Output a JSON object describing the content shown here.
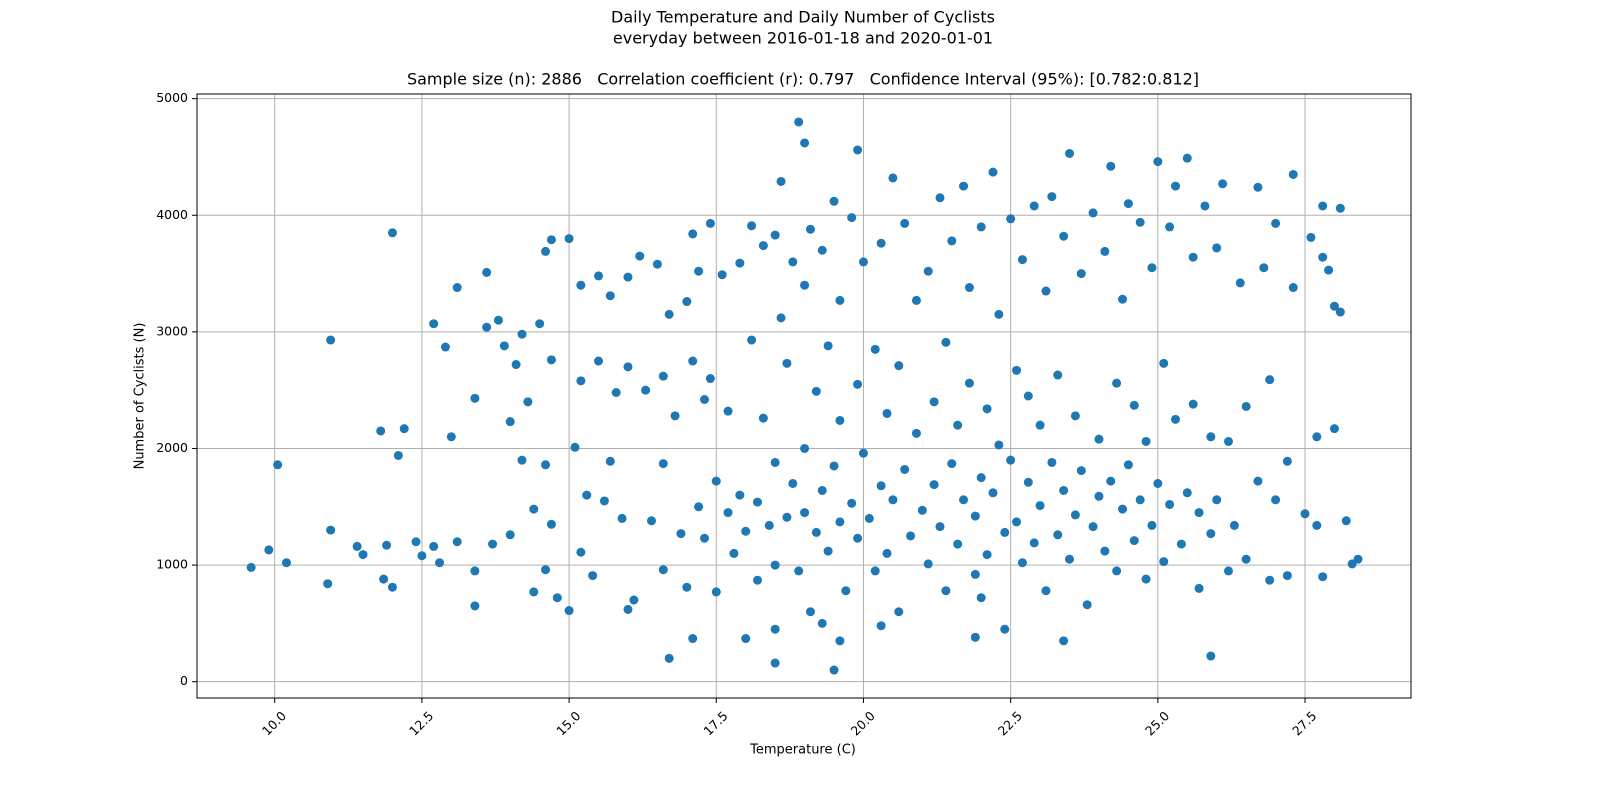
{
  "chart_data": {
    "type": "scatter",
    "title": [
      "Daily Temperature and Daily Number of Cyclists",
      "everyday between 2016-01-18 and 2020-01-01"
    ],
    "subtitle": "Sample size (n): 2886   Correlation coefficient (r): 0.797   Confidence Interval (95%): [0.782:0.812]",
    "x_label": "Temperature (C)",
    "y_label": "Number of Cyclists (N)",
    "color": "#1f77b4",
    "grid": true,
    "xlim": [
      8.68,
      29.3
    ],
    "ylim": [
      -140,
      5040
    ],
    "xticks": [
      {
        "value": 10,
        "label": "10.0"
      },
      {
        "value": 12.5,
        "label": "12.5"
      },
      {
        "value": 15,
        "label": "15.0"
      },
      {
        "value": 17.5,
        "label": "17.5"
      },
      {
        "value": 20,
        "label": "20.0"
      },
      {
        "value": 22.5,
        "label": "22.5"
      },
      {
        "value": 25,
        "label": "25.0"
      },
      {
        "value": 27.5,
        "label": "27.5"
      }
    ],
    "yticks": [
      0,
      1000,
      2000,
      3000,
      4000,
      5000
    ],
    "x": [
      9.6,
      9.9,
      10.05,
      10.2,
      10.9,
      10.95,
      10.95,
      11.4,
      11.5,
      11.8,
      11.85,
      11.9,
      12.0,
      12.0,
      12.1,
      12.2,
      12.4,
      12.5,
      12.7,
      12.7,
      12.8,
      12.9,
      13.0,
      13.1,
      13.1,
      13.4,
      13.4,
      13.4,
      13.6,
      13.6,
      13.7,
      13.8,
      13.9,
      14.0,
      14.0,
      14.1,
      14.2,
      14.2,
      14.3,
      14.4,
      14.4,
      14.5,
      14.6,
      14.6,
      14.6,
      14.7,
      14.7,
      14.7,
      14.8,
      15.0,
      15.0,
      15.1,
      15.2,
      15.2,
      15.2,
      15.3,
      15.4,
      15.5,
      15.5,
      15.6,
      15.7,
      15.7,
      15.8,
      15.9,
      16.0,
      16.0,
      16.1,
      16.2,
      16.3,
      16.4,
      16.5,
      16.6,
      16.6,
      16.6,
      16.7,
      16.7,
      16.8,
      16.9,
      17.0,
      17.0,
      17.1,
      17.1,
      17.2,
      17.2,
      17.3,
      17.3,
      17.4,
      17.4,
      17.5,
      17.5,
      17.6,
      17.7,
      17.7,
      17.8,
      17.9,
      17.9,
      18.0,
      18.0,
      18.1,
      18.1,
      18.2,
      18.2,
      18.3,
      18.3,
      18.4,
      18.5,
      18.5,
      18.5,
      18.6,
      18.6,
      18.7,
      18.7,
      18.8,
      18.8,
      18.9,
      19.0,
      19.0,
      19.0,
      19.1,
      19.1,
      19.2,
      19.2,
      19.3,
      19.3,
      19.3,
      19.4,
      19.4,
      19.5,
      19.5,
      19.6,
      19.6,
      19.6,
      19.7,
      19.8,
      19.8,
      19.9,
      19.9,
      20.0,
      20.0,
      18.9,
      19.0,
      20.1,
      20.2,
      20.2,
      20.3,
      20.3,
      20.4,
      20.4,
      20.5,
      20.5,
      20.6,
      20.6,
      20.7,
      20.7,
      20.8,
      20.9,
      20.9,
      21.0,
      19.9,
      21.1,
      21.1,
      21.2,
      21.2,
      21.3,
      21.3,
      21.4,
      21.4,
      21.5,
      21.5,
      21.6,
      21.6,
      21.7,
      21.7,
      21.8,
      21.8,
      21.9,
      21.9,
      22.0,
      22.0,
      22.1,
      22.1,
      22.2,
      22.2,
      22.3,
      22.3,
      22.4,
      22.4,
      22.5,
      22.5,
      22.6,
      22.6,
      22.7,
      22.7,
      22.8,
      22.8,
      22.9,
      22.9,
      23.0,
      23.0,
      23.1,
      23.1,
      23.2,
      23.2,
      23.3,
      23.3,
      23.4,
      23.4,
      23.5,
      23.5,
      23.6,
      23.6,
      23.7,
      23.7,
      23.8,
      23.9,
      23.9,
      24.0,
      24.0,
      24.1,
      24.1,
      24.2,
      24.2,
      24.3,
      24.3,
      24.4,
      24.4,
      24.5,
      24.5,
      24.6,
      24.6,
      24.7,
      24.7,
      24.8,
      24.8,
      24.9,
      24.9,
      25.0,
      25.0,
      25.1,
      25.1,
      25.2,
      25.2,
      25.3,
      25.3,
      25.4,
      25.5,
      25.5,
      25.6,
      25.6,
      25.7,
      25.7,
      25.8,
      25.9,
      25.9,
      26.0,
      26.0,
      26.1,
      26.2,
      26.2,
      26.3,
      26.4,
      26.5,
      26.5,
      26.7,
      26.7,
      26.8,
      26.9,
      26.9,
      27.0,
      27.0,
      27.2,
      27.2,
      27.3,
      27.3,
      27.5,
      27.6,
      27.7,
      27.7,
      27.8,
      27.8,
      27.8,
      27.9,
      28.0,
      28.0,
      28.1,
      28.1,
      28.2,
      28.3,
      28.4,
      17.1,
      19.5,
      18.5,
      25.9,
      16.0,
      23.4,
      19.6,
      21.9,
      18.5,
      22.0,
      20.3
    ],
    "values": [
      980,
      1130,
      1860,
      1020,
      840,
      2930,
      1300,
      1160,
      1090,
      2150,
      880,
      1170,
      3850,
      810,
      1940,
      2170,
      1200,
      1080,
      3070,
      1160,
      1020,
      2870,
      2100,
      3380,
      1200,
      2430,
      950,
      650,
      3510,
      3040,
      1180,
      3100,
      2880,
      2230,
      1260,
      2720,
      2980,
      1900,
      2400,
      1480,
      770,
      3070,
      3690,
      1860,
      960,
      3790,
      2760,
      1350,
      720,
      3800,
      610,
      2010,
      3400,
      2580,
      1110,
      1600,
      910,
      3480,
      2750,
      1550,
      3310,
      1890,
      2480,
      1400,
      3470,
      2700,
      700,
      3650,
      2500,
      1380,
      3580,
      2620,
      1870,
      960,
      3150,
      200,
      2280,
      1270,
      3260,
      810,
      3840,
      2750,
      1500,
      3520,
      2420,
      1230,
      3930,
      2600,
      1720,
      770,
      3490,
      2320,
      1450,
      1100,
      3590,
      1600,
      1290,
      370,
      2930,
      3910,
      1540,
      870,
      3740,
      2260,
      1340,
      3830,
      1880,
      1000,
      4290,
      3120,
      1410,
      2730,
      3600,
      1700,
      950,
      3400,
      2000,
      1450,
      600,
      3880,
      2490,
      1280,
      3700,
      1640,
      500,
      2880,
      1120,
      4120,
      1850,
      3270,
      2240,
      1370,
      780,
      3980,
      1530,
      2550,
      1230,
      3600,
      1960,
      4800,
      4620,
      1400,
      2850,
      950,
      3760,
      1680,
      2300,
      1100,
      4320,
      1560,
      2710,
      600,
      3930,
      1820,
      1250,
      3270,
      2130,
      1470,
      4560,
      1010,
      3520,
      2400,
      1690,
      4150,
      1330,
      2910,
      780,
      3780,
      1870,
      2200,
      1180,
      4250,
      1560,
      3380,
      2560,
      1420,
      920,
      3900,
      1750,
      2340,
      1090,
      4370,
      1620,
      3150,
      2030,
      1280,
      450,
      3970,
      1900,
      2670,
      1370,
      3620,
      1020,
      2450,
      1710,
      4080,
      1190,
      2200,
      1510,
      3350,
      780,
      4160,
      1880,
      1260,
      2630,
      3820,
      1640,
      4530,
      1050,
      2280,
      1430,
      3500,
      1810,
      660,
      4020,
      1330,
      2080,
      1590,
      3690,
      1120,
      4420,
      1720,
      2560,
      950,
      3280,
      1480,
      4100,
      1860,
      1210,
      2370,
      3940,
      1560,
      2060,
      880,
      3550,
      1340,
      4460,
      1700,
      2730,
      1030,
      3900,
      1520,
      4250,
      2250,
      1180,
      4490,
      1620,
      3640,
      2380,
      800,
      1450,
      4080,
      2100,
      1270,
      3720,
      1560,
      4270,
      2060,
      950,
      1340,
      3420,
      2360,
      1050,
      4240,
      1720,
      3550,
      2590,
      870,
      3930,
      1560,
      1890,
      910,
      4350,
      3380,
      1440,
      3810,
      2100,
      1340,
      4080,
      900,
      3640,
      3530,
      3220,
      2170,
      3170,
      4060,
      1380,
      1010,
      1050,
      370,
      100,
      160,
      220,
      620,
      350,
      350,
      380,
      450,
      720,
      480
    ]
  }
}
